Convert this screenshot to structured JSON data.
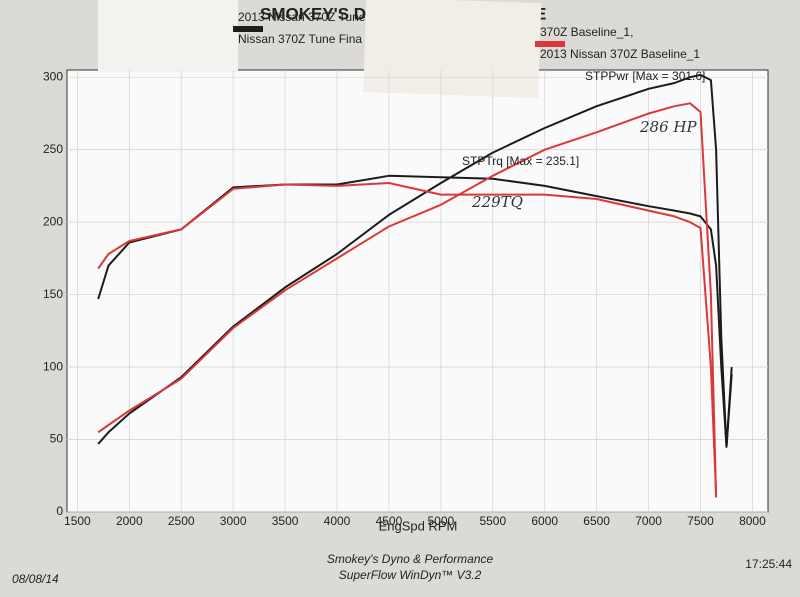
{
  "chart_data": {
    "type": "line",
    "title": "SMOKEY'S DY",
    "title_end": "E",
    "x_label": "EngSpd RPM",
    "footer": [
      "Smokey's Dyno & Performance",
      "SuperFlow WinDyn™ V3.2"
    ],
    "date": "08/08/14",
    "time": "17:25:44",
    "annotations": [
      "STPPwr [Max = 301.6]",
      "STPTrq [Max = 235.1]",
      "286 HP",
      "229TQ"
    ],
    "x": [
      1700,
      1800,
      2000,
      2500,
      3000,
      3500,
      4000,
      4500,
      5000,
      5500,
      6000,
      6500,
      7000,
      7250,
      7400,
      7500,
      7600,
      7650,
      7700,
      7750,
      7800
    ],
    "runs": [
      {
        "header": "2013 Nissan 370Z Tune",
        "name": "Nissan 370Z Tune Fina",
        "color": "#1c1c1c",
        "power": [
          47,
          55,
          68,
          93,
          128,
          155,
          178,
          205,
          227,
          248,
          265,
          280,
          292,
          296,
          300,
          301.6,
          298,
          250,
          120,
          45,
          95
        ],
        "torque": [
          147,
          170,
          186,
          195,
          224,
          226,
          226,
          232,
          231,
          230,
          225,
          218,
          211,
          208,
          206,
          204,
          195,
          170,
          100,
          45,
          100
        ]
      },
      {
        "header": "370Z Baseline_1,",
        "name": "2013 Nissan 370Z Baseline_1",
        "color": "#d9393b",
        "power": [
          55,
          60,
          70,
          92,
          127,
          153,
          175,
          197,
          212,
          232,
          250,
          262,
          275,
          280,
          282,
          276,
          150,
          10,
          null,
          null,
          null
        ],
        "torque": [
          168,
          178,
          187,
          195,
          223,
          226,
          225,
          227,
          219,
          219,
          219,
          216,
          208,
          204,
          200,
          196,
          100,
          12,
          null,
          null,
          null
        ]
      }
    ],
    "xlim": [
      1400,
      8150
    ],
    "xticks": [
      1500,
      2000,
      2500,
      3000,
      3500,
      4000,
      4500,
      5000,
      5500,
      6000,
      6500,
      7000,
      7500,
      8000
    ],
    "ylim": [
      0,
      305
    ],
    "yticks": [
      0,
      50,
      100,
      150,
      200,
      250,
      300
    ],
    "grid": true
  }
}
